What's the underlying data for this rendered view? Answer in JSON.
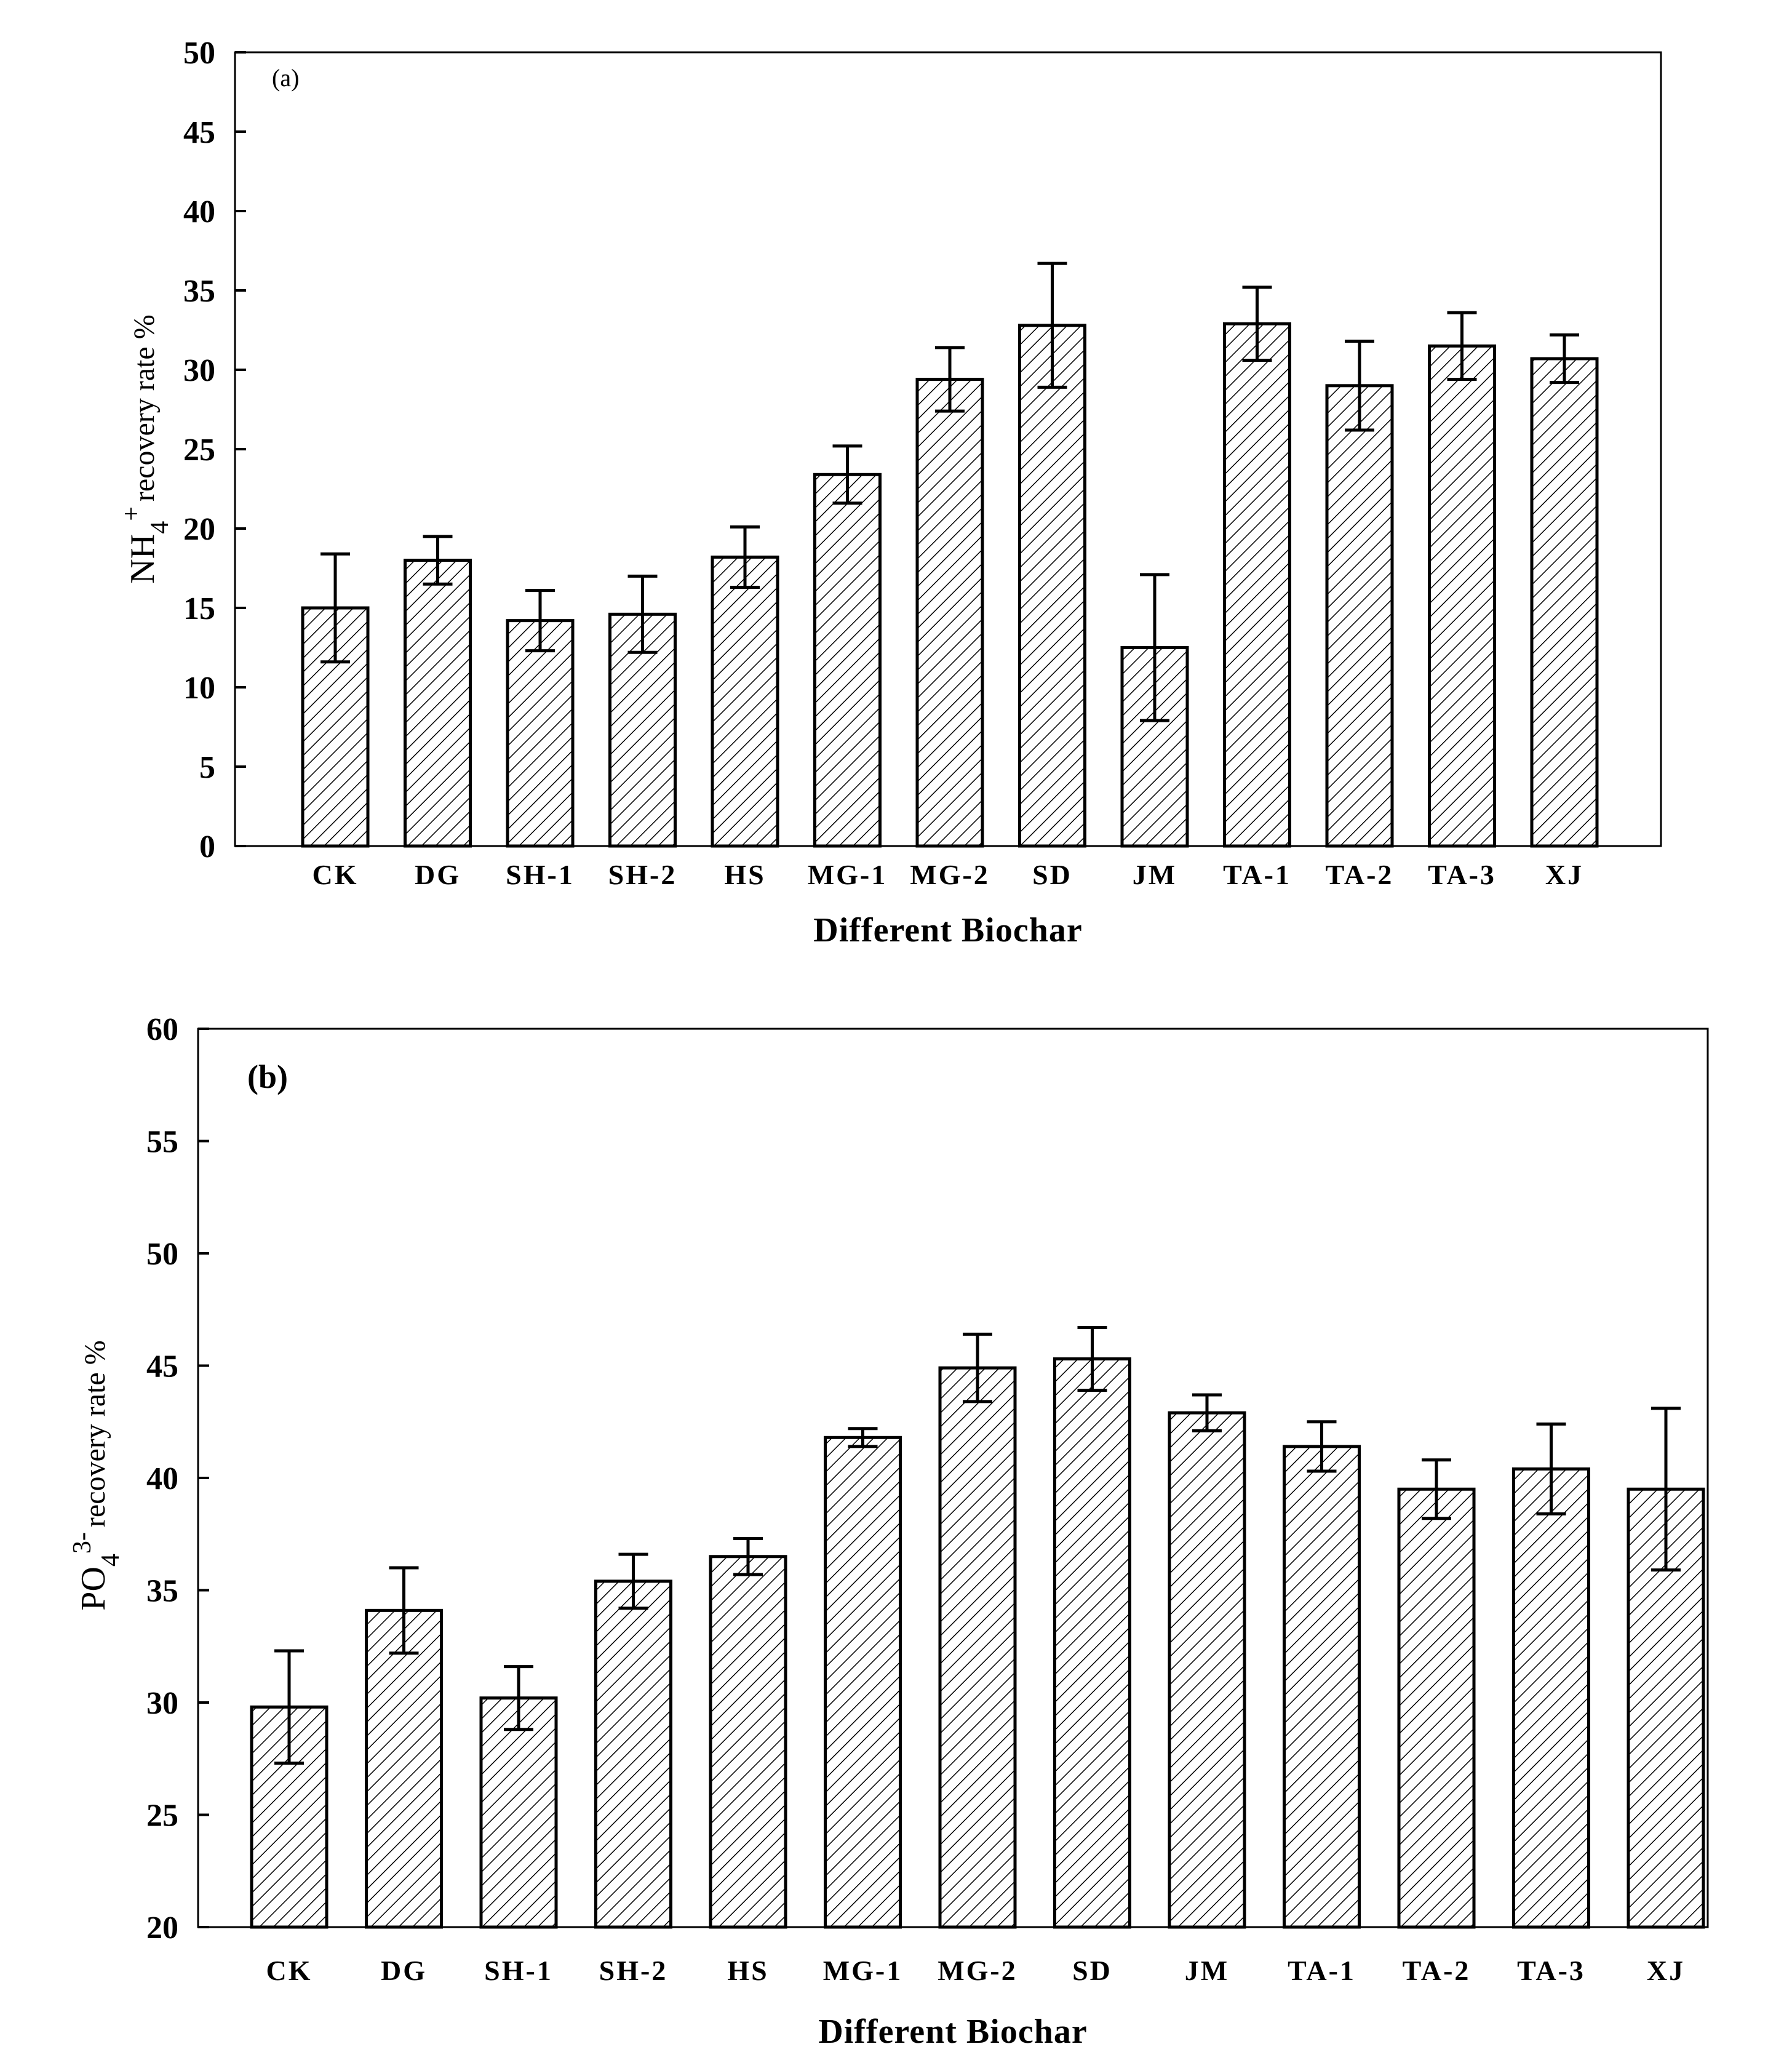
{
  "chart_data": [
    {
      "type": "bar",
      "panel_label": "(a)",
      "title": "",
      "xlabel": "Different Biochar",
      "ylabel": {
        "main": "NH",
        "sub": "4",
        "sup": "+",
        "suffix": "recovery rate %"
      },
      "ylim": [
        0,
        50
      ],
      "yticks": [
        "0",
        "5",
        "10",
        "15",
        "20",
        "25",
        "30",
        "35",
        "40",
        "45",
        "50"
      ],
      "categories": [
        "CK",
        "DG",
        "SH-1",
        "SH-2",
        "HS",
        "MG-1",
        "MG-2",
        "SD",
        "JM",
        "TA-1",
        "TA-2",
        "TA-3",
        "XJ"
      ],
      "category_labels": [
        "CK",
        "DG",
        "SH-1",
        "SH-2",
        "HS",
        "MG-1",
        "MG-2",
        "SD",
        "JM",
        "TA-1",
        "TA-2",
        "TA-3",
        "XJ"
      ],
      "values": [
        15.0,
        18.0,
        14.2,
        14.6,
        18.2,
        23.4,
        29.4,
        32.8,
        12.5,
        32.9,
        29.0,
        31.5,
        30.7
      ],
      "errors": [
        3.4,
        1.5,
        1.9,
        2.4,
        1.9,
        1.8,
        2.0,
        3.9,
        4.6,
        2.3,
        2.8,
        2.1,
        1.5
      ],
      "grid": false
    },
    {
      "type": "bar",
      "panel_label": "(b)",
      "title": "",
      "xlabel": "Different Biochar",
      "ylabel": {
        "main": "PO",
        "sub": "4",
        "sup": "3-",
        "suffix": "recovery rate %"
      },
      "ylim": [
        20,
        60
      ],
      "yticks": [
        "20",
        "25",
        "30",
        "35",
        "40",
        "45",
        "50",
        "55",
        "60"
      ],
      "categories": [
        "CK",
        "DG",
        "SH-1",
        "SH-2",
        "HS",
        "MG-1",
        "MG-2",
        "SD",
        "JM",
        "TA-1",
        "TA-2",
        "TA-3",
        "XJ"
      ],
      "category_labels": [
        "CK",
        "DG",
        "SH-1",
        "SH-2",
        "HS",
        "MG-1",
        "MG-2",
        "SD",
        "JM",
        "TA-1",
        "TA-2",
        "TA-3",
        "XJ"
      ],
      "values": [
        29.8,
        34.1,
        30.2,
        35.4,
        36.5,
        41.8,
        44.9,
        45.3,
        42.9,
        41.4,
        39.5,
        40.4,
        39.5
      ],
      "errors": [
        2.5,
        1.9,
        1.4,
        1.2,
        0.8,
        0.4,
        1.5,
        1.4,
        0.8,
        1.1,
        1.3,
        2.0,
        3.6
      ],
      "grid": false
    }
  ]
}
